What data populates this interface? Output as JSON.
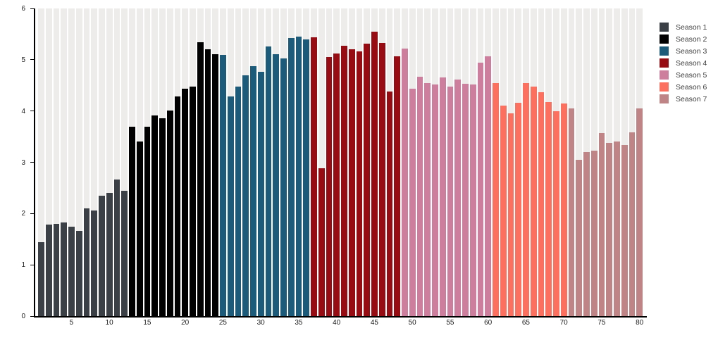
{
  "chart_data": {
    "type": "bar",
    "title": "",
    "xlabel": "",
    "ylabel": "",
    "ylim": [
      0,
      6
    ],
    "yticks": [
      0,
      1,
      2,
      3,
      4,
      5,
      6
    ],
    "xticks": [
      5,
      10,
      15,
      20,
      25,
      30,
      35,
      40,
      45,
      50,
      55,
      60,
      65,
      70,
      75,
      80
    ],
    "x_range": [
      1,
      80
    ],
    "grid": "off",
    "background_stripes": true,
    "legend_position": "outside-upper-right",
    "series": [
      {
        "name": "Season 1",
        "color": "#3a4045",
        "episode_start": 1,
        "values": [
          1.44,
          1.79,
          1.8,
          1.82,
          1.74,
          1.66,
          2.1,
          2.06,
          2.35,
          2.4,
          2.66,
          2.45
        ]
      },
      {
        "name": "Season 2",
        "color": "#010101",
        "episode_start": 13,
        "values": [
          3.7,
          3.41,
          3.7,
          3.91,
          3.86,
          4.01,
          4.28,
          4.43,
          4.48,
          5.34,
          5.2,
          5.11
        ]
      },
      {
        "name": "Season 3",
        "color": "#1c5b79",
        "episode_start": 25,
        "values": [
          5.1,
          4.28,
          4.48,
          4.69,
          4.88,
          4.76,
          5.26,
          5.11,
          5.02,
          5.42,
          5.45,
          5.39
        ]
      },
      {
        "name": "Season 4",
        "color": "#970c12",
        "episode_start": 37,
        "values": [
          5.44,
          2.89,
          5.05,
          5.12,
          5.27,
          5.21,
          5.16,
          5.32,
          5.55,
          5.33,
          4.38,
          5.07
        ]
      },
      {
        "name": "Season 5",
        "color": "#cd7e9d",
        "episode_start": 49,
        "values": [
          5.22,
          4.43,
          4.67,
          4.55,
          4.52,
          4.65,
          4.48,
          4.62,
          4.53,
          4.52,
          4.94,
          5.07
        ]
      },
      {
        "name": "Season 6",
        "color": "#fb705f",
        "episode_start": 61,
        "values": [
          4.54,
          4.1,
          3.95,
          4.16,
          4.54,
          4.47,
          4.36,
          4.18,
          4.0,
          4.14
        ]
      },
      {
        "name": "Season 7",
        "color": "#bf8486",
        "episode_start": 71,
        "values": [
          4.05,
          3.05,
          3.2,
          3.23,
          3.57,
          3.38,
          3.4,
          3.34,
          3.58,
          4.05
        ]
      }
    ]
  },
  "colors": {
    "background": "#ffffff",
    "stripe": "#edecea",
    "axis": "#000000",
    "tick_label": "#1a1a1a",
    "legend_text": "#3c3c3c"
  }
}
